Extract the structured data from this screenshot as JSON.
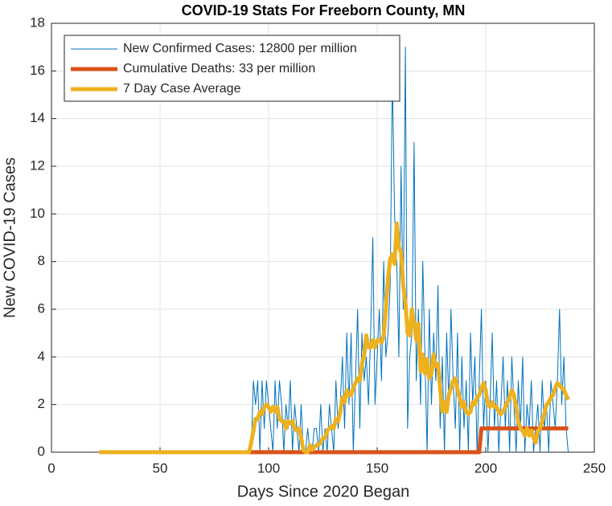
{
  "chart_data": {
    "type": "line",
    "title": "COVID-19 Stats For Freeborn County, MN",
    "xlabel": "Days Since 2020 Began",
    "ylabel": "New COVID-19 Cases",
    "xlim": [
      0,
      250
    ],
    "xticks": [
      0,
      50,
      100,
      150,
      200,
      250
    ],
    "ylim": [
      0,
      18
    ],
    "yticks": [
      0,
      2,
      4,
      6,
      8,
      10,
      12,
      14,
      16,
      18
    ],
    "grid": true,
    "legend": "upper left",
    "x": [
      22,
      23,
      24,
      25,
      26,
      27,
      28,
      29,
      30,
      31,
      32,
      33,
      34,
      35,
      36,
      37,
      38,
      39,
      40,
      41,
      42,
      43,
      44,
      45,
      46,
      47,
      48,
      49,
      50,
      51,
      52,
      53,
      54,
      55,
      56,
      57,
      58,
      59,
      60,
      61,
      62,
      63,
      64,
      65,
      66,
      67,
      68,
      69,
      70,
      71,
      72,
      73,
      74,
      75,
      76,
      77,
      78,
      79,
      80,
      81,
      82,
      83,
      84,
      85,
      86,
      87,
      88,
      89,
      90,
      91,
      92,
      93,
      94,
      95,
      96,
      97,
      98,
      99,
      100,
      101,
      102,
      103,
      104,
      105,
      106,
      107,
      108,
      109,
      110,
      111,
      112,
      113,
      114,
      115,
      116,
      117,
      118,
      119,
      120,
      121,
      122,
      123,
      124,
      125,
      126,
      127,
      128,
      129,
      130,
      131,
      132,
      133,
      134,
      135,
      136,
      137,
      138,
      139,
      140,
      141,
      142,
      143,
      144,
      145,
      146,
      147,
      148,
      149,
      150,
      151,
      152,
      153,
      154,
      155,
      156,
      157,
      158,
      159,
      160,
      161,
      162,
      163,
      164,
      165,
      166,
      167,
      168,
      169,
      170,
      171,
      172,
      173,
      174,
      175,
      176,
      177,
      178,
      179,
      180,
      181,
      182,
      183,
      184,
      185,
      186,
      187,
      188,
      189,
      190,
      191,
      192,
      193,
      194,
      195,
      196,
      197,
      198,
      199,
      200,
      201,
      202,
      203,
      204,
      205,
      206,
      207,
      208,
      209,
      210,
      211,
      212,
      213,
      214,
      215,
      216,
      217,
      218,
      219,
      220,
      221,
      222,
      223,
      224,
      225,
      226,
      227,
      228,
      229,
      230,
      231,
      232,
      233,
      234,
      235,
      236,
      237,
      238
    ],
    "series": [
      {
        "name": "New Confirmed Cases: 12800 per million",
        "color": "#0072BD",
        "width": 1,
        "values": [
          0,
          0,
          0,
          0,
          0,
          0,
          0,
          0,
          0,
          0,
          0,
          0,
          0,
          0,
          0,
          0,
          0,
          0,
          0,
          0,
          0,
          0,
          0,
          0,
          0,
          0,
          0,
          0,
          0,
          0,
          0,
          0,
          0,
          0,
          0,
          0,
          0,
          0,
          0,
          0,
          0,
          0,
          0,
          0,
          0,
          0,
          0,
          0,
          0,
          0,
          0,
          0,
          0,
          0,
          0,
          0,
          0,
          0,
          0,
          0,
          0,
          0,
          0,
          0,
          0,
          0,
          0,
          0,
          0,
          0,
          0,
          3,
          2,
          3,
          0,
          3,
          1,
          3,
          2,
          1,
          0,
          3,
          1,
          3,
          2,
          0,
          2,
          1,
          3,
          0,
          2,
          1,
          0,
          2,
          0,
          0,
          1,
          0,
          0,
          1,
          1,
          0,
          2,
          0,
          1,
          0,
          2,
          1,
          0,
          3,
          1,
          2,
          4,
          1,
          5,
          2,
          5,
          0,
          3,
          6,
          1,
          5,
          3,
          4,
          2,
          5,
          9,
          2,
          4,
          6,
          3,
          8,
          4,
          5,
          7,
          16,
          10,
          8,
          4,
          12,
          6,
          17,
          1,
          4,
          5,
          13,
          3,
          6,
          2,
          8,
          4,
          0,
          6,
          2,
          5,
          3,
          7,
          1,
          4,
          0,
          5,
          2,
          6,
          3,
          1,
          5,
          0,
          4,
          1,
          3,
          0,
          5,
          2,
          4,
          0,
          3,
          6,
          1,
          3,
          0,
          2,
          5,
          1,
          3,
          0,
          2,
          4,
          1,
          3,
          0,
          4,
          2,
          0,
          3,
          1,
          4,
          0,
          2,
          1,
          3,
          0,
          1,
          2,
          0,
          3,
          1,
          2,
          0,
          3,
          2,
          1,
          3,
          6,
          2,
          4,
          1,
          0
        ]
      },
      {
        "name": "Cumulative Deaths: 33 per million",
        "color": "#D95319",
        "width": 5,
        "values": [
          0,
          0,
          0,
          0,
          0,
          0,
          0,
          0,
          0,
          0,
          0,
          0,
          0,
          0,
          0,
          0,
          0,
          0,
          0,
          0,
          0,
          0,
          0,
          0,
          0,
          0,
          0,
          0,
          0,
          0,
          0,
          0,
          0,
          0,
          0,
          0,
          0,
          0,
          0,
          0,
          0,
          0,
          0,
          0,
          0,
          0,
          0,
          0,
          0,
          0,
          0,
          0,
          0,
          0,
          0,
          0,
          0,
          0,
          0,
          0,
          0,
          0,
          0,
          0,
          0,
          0,
          0,
          0,
          0,
          0,
          0,
          0,
          0,
          0,
          0,
          0,
          0,
          0,
          0,
          0,
          0,
          0,
          0,
          0,
          0,
          0,
          0,
          0,
          0,
          0,
          0,
          0,
          0,
          0,
          0,
          0,
          0,
          0,
          0,
          0,
          0,
          0,
          0,
          0,
          0,
          0,
          0,
          0,
          0,
          0,
          0,
          0,
          0,
          0,
          0,
          0,
          0,
          0,
          0,
          0,
          0,
          0,
          0,
          0,
          0,
          0,
          0,
          0,
          0,
          0,
          0,
          0,
          0,
          0,
          0,
          0,
          0,
          0,
          0,
          0,
          0,
          0,
          0,
          0,
          0,
          0,
          0,
          0,
          0,
          0,
          0,
          0,
          0,
          0,
          0,
          0,
          0,
          0,
          0,
          0,
          0,
          0,
          0,
          0,
          0,
          0,
          0,
          0,
          0,
          0,
          0,
          0,
          0,
          0,
          0,
          0,
          1,
          1,
          1,
          1,
          1,
          1,
          1,
          1,
          1,
          1,
          1,
          1,
          1,
          1,
          1,
          1,
          1,
          1,
          1,
          1,
          1,
          1,
          1,
          1,
          1,
          1,
          1,
          1,
          1,
          1,
          1,
          1,
          1,
          1,
          1,
          1,
          1,
          1,
          1,
          1,
          1
        ]
      },
      {
        "name": "7 Day Case Average",
        "color": "#EDB120",
        "width": 5,
        "values": [
          0,
          0,
          0,
          0,
          0,
          0,
          0,
          0,
          0,
          0,
          0,
          0,
          0,
          0,
          0,
          0,
          0,
          0,
          0,
          0,
          0,
          0,
          0,
          0,
          0,
          0,
          0,
          0,
          0,
          0,
          0,
          0,
          0,
          0,
          0,
          0,
          0,
          0,
          0,
          0,
          0,
          0,
          0,
          0,
          0,
          0,
          0,
          0,
          0,
          0,
          0,
          0,
          0,
          0,
          0,
          0,
          0,
          0,
          0,
          0,
          0,
          0,
          0,
          0,
          0,
          0,
          0,
          0,
          0,
          0,
          0.4,
          0.9,
          1.4,
          1.4,
          1.7,
          1.6,
          1.9,
          2.0,
          1.9,
          1.7,
          1.9,
          1.7,
          1.9,
          1.4,
          1.3,
          1.3,
          1.0,
          1.3,
          1.2,
          1.3,
          1.0,
          0.9,
          1.0,
          0.6,
          0.1,
          0,
          0,
          0.3,
          0.1,
          0.2,
          0.3,
          0.3,
          0.4,
          0.6,
          0.6,
          0.9,
          1.0,
          1.1,
          1.0,
          1.4,
          1.3,
          1.7,
          2.3,
          2.1,
          2.6,
          2.4,
          2.4,
          2.7,
          2.9,
          3.1,
          3.0,
          3.7,
          4.1,
          4.9,
          4.4,
          4.4,
          4.7,
          4.4,
          4.7,
          4.7,
          4.6,
          4.9,
          6.0,
          7.3,
          8.1,
          8.3,
          7.9,
          9.6,
          8.6,
          8.4,
          7.0,
          6.3,
          5.0,
          4.9,
          6.0,
          5.4,
          4.7,
          5.4,
          3.4,
          4.1,
          3.3,
          3.9,
          3.1,
          3.3,
          4.1,
          3.6,
          3.7,
          2.7,
          1.7,
          2.1,
          1.7,
          2.4,
          2.7,
          3.0,
          3.1,
          2.6,
          2.3,
          1.9,
          2.1,
          1.7,
          1.6,
          1.7,
          2.1,
          2.0,
          2.3,
          2.4,
          2.7,
          2.9,
          2.6,
          2.0,
          1.9,
          2.1,
          1.9,
          1.9,
          1.7,
          1.6,
          1.7,
          1.9,
          2.1,
          2.3,
          2.6,
          2.4,
          1.9,
          1.3,
          1.0,
          0.9,
          0.7,
          1.0,
          0.7,
          0.9,
          0.6,
          0.4,
          0.9,
          1.0,
          1.3,
          1.6,
          2.0,
          2.1,
          2.3,
          2.4,
          2.7,
          2.9,
          2.8,
          2.7,
          2.6,
          2.4,
          2.2
        ]
      }
    ]
  }
}
